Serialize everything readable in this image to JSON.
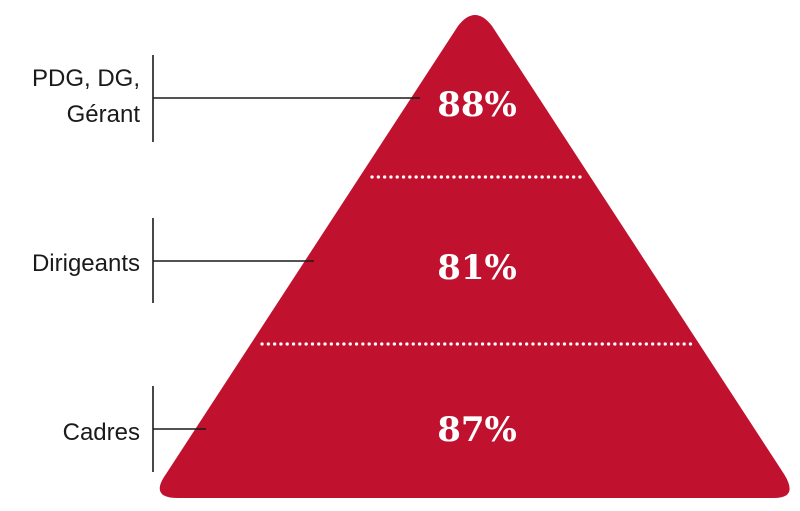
{
  "pyramid": {
    "fill_color": "#c0122f",
    "text_color": "#ffffff",
    "tiers": [
      {
        "label_lines": [
          "PDG, DG,",
          "Gérant"
        ],
        "value": "88%"
      },
      {
        "label_lines": [
          "Dirigeants"
        ],
        "value": "81%"
      },
      {
        "label_lines": [
          "Cadres"
        ],
        "value": "87%"
      }
    ]
  }
}
